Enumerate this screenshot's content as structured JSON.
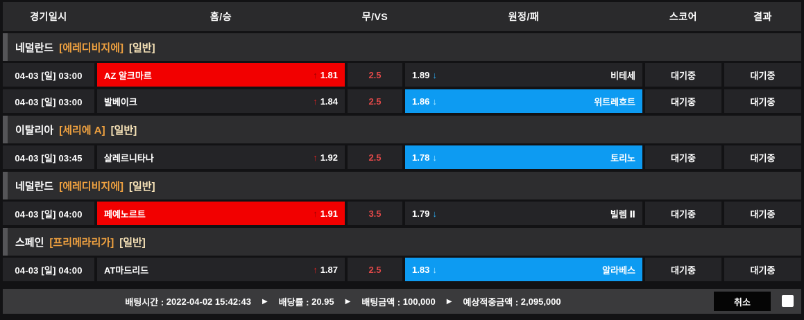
{
  "columns": [
    "경기일시",
    "홈/승",
    "무/VS",
    "원정/패",
    "스코어",
    "결과"
  ],
  "icons": {
    "up_arrow": "↑",
    "down_arrow": "↓",
    "separator": "▶"
  },
  "colors": {
    "selected_home_red": "#f20000",
    "selected_away_blue": "#0d9bf2",
    "handicap_text": "#e04848",
    "league_bracket": "#f2a340",
    "type_bracket": "#f7e3b8"
  },
  "groups": [
    {
      "league": {
        "country": "네덜란드",
        "league_name": "[에레디비지에]",
        "match_type": "[일반]"
      },
      "rows": [
        {
          "time": "04-03 [일] 03:00",
          "home": {
            "team": "AZ 알크마르",
            "odds": "1.81",
            "selected": true
          },
          "vs": "2.5",
          "away": {
            "team": "비테세",
            "odds": "1.89",
            "selected": false
          },
          "score": "대기중",
          "result": "대기중"
        },
        {
          "time": "04-03 [일] 03:00",
          "home": {
            "team": "발베이크",
            "odds": "1.84",
            "selected": false
          },
          "vs": "2.5",
          "away": {
            "team": "위트레흐트",
            "odds": "1.86",
            "selected": true
          },
          "score": "대기중",
          "result": "대기중"
        }
      ]
    },
    {
      "league": {
        "country": "이탈리아",
        "league_name": "[세리에 A]",
        "match_type": "[일반]"
      },
      "rows": [
        {
          "time": "04-03 [일] 03:45",
          "home": {
            "team": "살레르니타나",
            "odds": "1.92",
            "selected": false
          },
          "vs": "2.5",
          "away": {
            "team": "토리노",
            "odds": "1.78",
            "selected": true
          },
          "score": "대기중",
          "result": "대기중"
        }
      ]
    },
    {
      "league": {
        "country": "네덜란드",
        "league_name": "[에레디비지에]",
        "match_type": "[일반]"
      },
      "rows": [
        {
          "time": "04-03 [일] 04:00",
          "home": {
            "team": "페예노르트",
            "odds": "1.91",
            "selected": true
          },
          "vs": "3.5",
          "away": {
            "team": "빌렘 Ⅱ",
            "odds": "1.79",
            "selected": false
          },
          "score": "대기중",
          "result": "대기중"
        }
      ]
    },
    {
      "league": {
        "country": "스페인",
        "league_name": "[프리메라리가]",
        "match_type": "[일반]"
      },
      "rows": [
        {
          "time": "04-03 [일] 04:00",
          "home": {
            "team": "AT마드리드",
            "odds": "1.87",
            "selected": false
          },
          "vs": "2.5",
          "away": {
            "team": "알라베스",
            "odds": "1.83",
            "selected": true
          },
          "score": "대기중",
          "result": "대기중"
        }
      ]
    }
  ],
  "footer": {
    "bet_time_label": "배팅시간 :",
    "bet_time": "2022-04-02 15:42:43",
    "odds_label": "배당률 :",
    "odds_total": "20.95",
    "amount_label": "배팅금액 :",
    "amount": "100,000",
    "expected_label": "예상적중금액 :",
    "expected": "2,095,000",
    "cancel_label": "취소"
  }
}
